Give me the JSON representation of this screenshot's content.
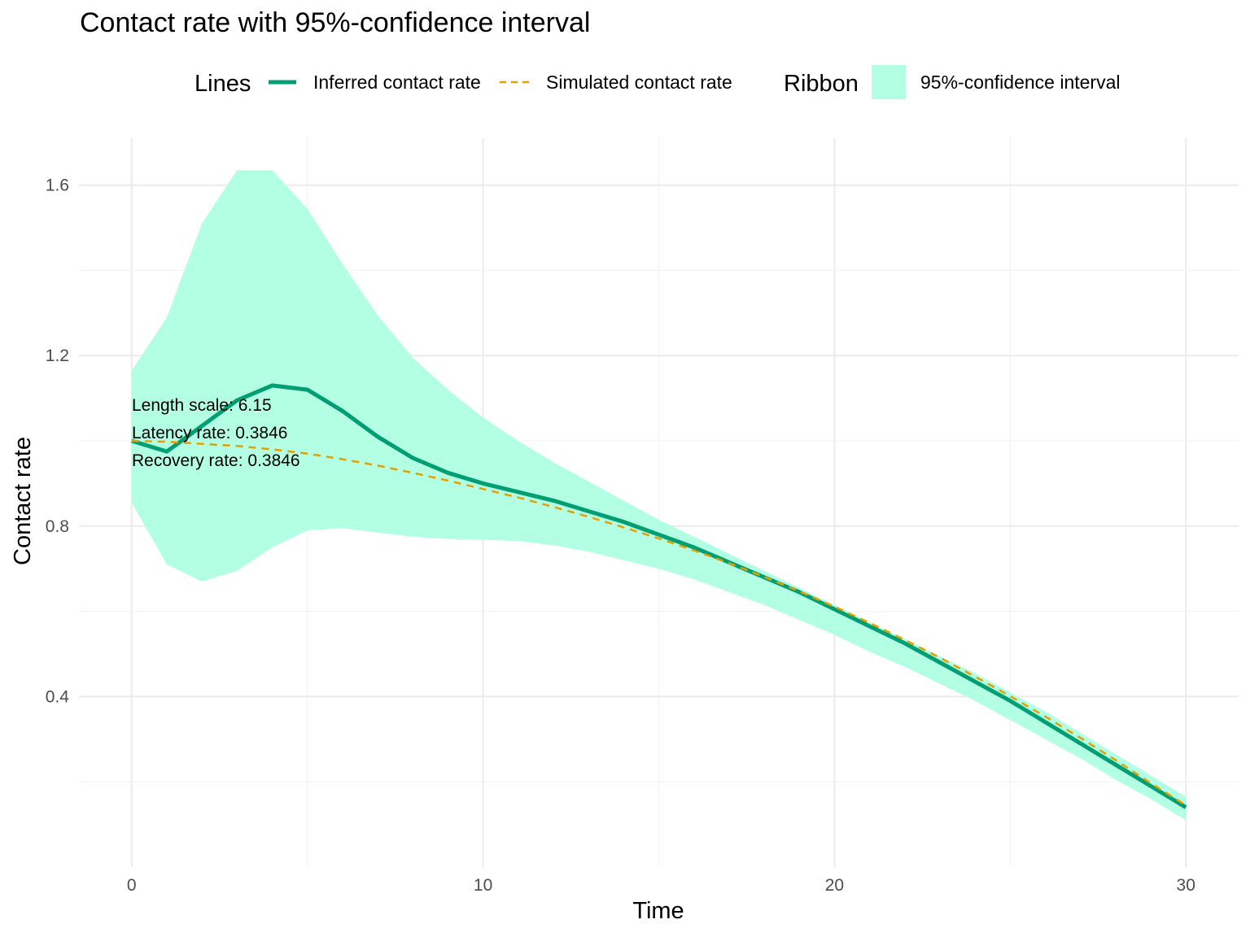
{
  "chart_data": {
    "type": "line",
    "title": "Contact rate with 95%-confidence interval",
    "xlabel": "Time",
    "ylabel": "Contact rate",
    "xlim": [
      -1.5,
      31.5
    ],
    "ylim": [
      0.0,
      1.71
    ],
    "x_ticks": [
      0,
      10,
      20,
      30
    ],
    "x_tick_labels": [
      "0",
      "10",
      "20",
      "30"
    ],
    "y_ticks": [
      0.4,
      0.8,
      1.2,
      1.6
    ],
    "y_tick_labels": [
      "0.4",
      "0.8",
      "1.2",
      "1.6"
    ],
    "grid": true,
    "legend": {
      "position": "top",
      "lines_title": "Lines",
      "ribbon_title": "Ribbon",
      "items": [
        {
          "label": "Inferred contact rate",
          "kind": "solid-line",
          "color": "#009E73"
        },
        {
          "label": "Simulated contact rate",
          "kind": "dashed-line",
          "color": "#E69F00"
        },
        {
          "label": "95%-confidence interval",
          "kind": "ribbon",
          "color": "#B3FFE3"
        }
      ]
    },
    "annotations": [
      "Length scale: 6.15",
      "Latency rate: 0.3846",
      "Recovery rate: 0.3846"
    ],
    "x": [
      0,
      1,
      2,
      3,
      4,
      5,
      6,
      7,
      8,
      9,
      10,
      11,
      12,
      13,
      14,
      15,
      16,
      17,
      18,
      19,
      20,
      21,
      22,
      23,
      24,
      25,
      26,
      27,
      28,
      29,
      30
    ],
    "series": [
      {
        "name": "Inferred contact rate",
        "color": "#009E73",
        "values": [
          1.0,
          0.975,
          1.035,
          1.095,
          1.13,
          1.12,
          1.07,
          1.01,
          0.96,
          0.925,
          0.9,
          0.88,
          0.86,
          0.835,
          0.81,
          0.78,
          0.75,
          0.715,
          0.68,
          0.645,
          0.605,
          0.565,
          0.525,
          0.48,
          0.435,
          0.39,
          0.34,
          0.29,
          0.24,
          0.19,
          0.14
        ]
      },
      {
        "name": "Simulated contact rate",
        "color": "#E69F00",
        "values": [
          1.0,
          0.998,
          0.993,
          0.988,
          0.98,
          0.97,
          0.957,
          0.942,
          0.925,
          0.907,
          0.887,
          0.867,
          0.845,
          0.822,
          0.797,
          0.771,
          0.743,
          0.713,
          0.681,
          0.647,
          0.611,
          0.573,
          0.533,
          0.491,
          0.447,
          0.401,
          0.353,
          0.303,
          0.251,
          0.197,
          0.145
        ]
      },
      {
        "name": "95%-confidence interval",
        "color": "#B3FFE3",
        "lower": [
          0.855,
          0.71,
          0.67,
          0.695,
          0.75,
          0.79,
          0.795,
          0.785,
          0.775,
          0.77,
          0.768,
          0.765,
          0.755,
          0.74,
          0.72,
          0.7,
          0.675,
          0.645,
          0.615,
          0.58,
          0.545,
          0.505,
          0.47,
          0.43,
          0.39,
          0.345,
          0.3,
          0.255,
          0.205,
          0.16,
          0.11
        ],
        "upper": [
          1.165,
          1.29,
          1.51,
          1.635,
          1.635,
          1.545,
          1.415,
          1.295,
          1.195,
          1.12,
          1.055,
          1.0,
          0.95,
          0.905,
          0.86,
          0.815,
          0.775,
          0.735,
          0.695,
          0.655,
          0.615,
          0.575,
          0.535,
          0.495,
          0.455,
          0.41,
          0.365,
          0.315,
          0.265,
          0.215,
          0.165
        ]
      }
    ]
  }
}
